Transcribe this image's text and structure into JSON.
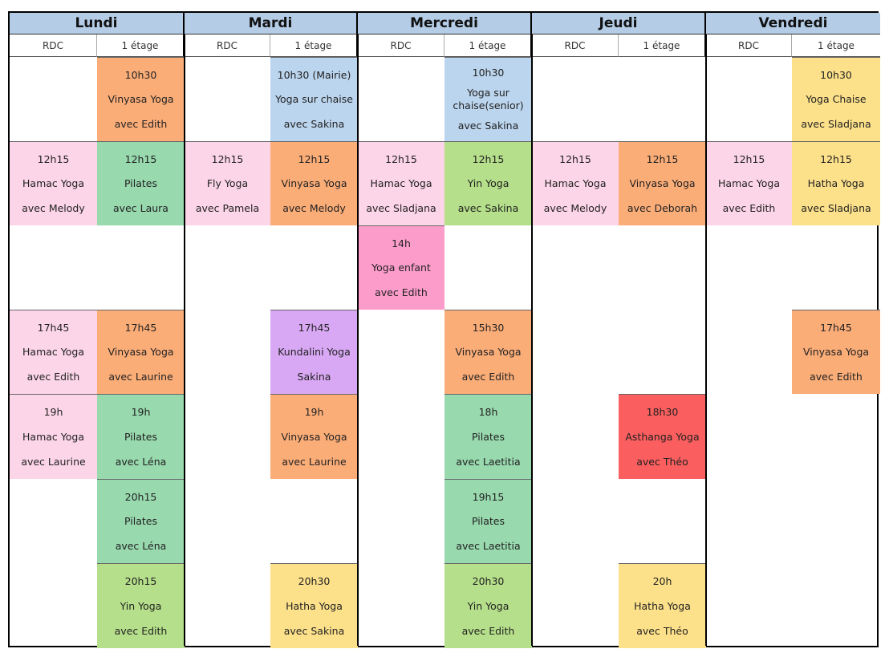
{
  "days": [
    "Lundi",
    "Mardi",
    "Mercredi",
    "Jeudi",
    "Vendredi"
  ],
  "floors": [
    "RDC",
    "1 étage",
    "RDC",
    "1 étage",
    "RDC",
    "1 étage",
    "RDC",
    "1 étage",
    "RDC",
    "1 étage"
  ],
  "colors": {
    "day_header": "#b4cce6",
    "pink": "#fcd5e8",
    "orange": "#fbad78",
    "green": "#98d9ae",
    "blue": "#bcd5ee",
    "yellow": "#fde18a",
    "lime": "#b5df8a",
    "hotpink": "#fc9ccb",
    "purple": "#d9a8f5",
    "red": "#fb5e5e"
  },
  "classes": [
    {
      "col": 2,
      "row": 3,
      "color": "orange",
      "time": "10h30",
      "name": "Vinyasa Yoga",
      "teacher": "avec Edith"
    },
    {
      "col": 4,
      "row": 3,
      "color": "blue",
      "time": "10h30 (Mairie)",
      "name": "Yoga sur chaise",
      "teacher": "avec Sakina"
    },
    {
      "col": 6,
      "row": 3,
      "color": "blue",
      "time": "10h30",
      "name": "Yoga sur chaise(senior)",
      "teacher": "avec Sakina"
    },
    {
      "col": 10,
      "row": 3,
      "color": "yellow",
      "time": "10h30",
      "name": "Yoga Chaise",
      "teacher": "avec Sladjana"
    },
    {
      "col": 1,
      "row": 4,
      "color": "pink",
      "time": "12h15",
      "name": "Hamac Yoga",
      "teacher": "avec Melody"
    },
    {
      "col": 2,
      "row": 4,
      "color": "green",
      "time": "12h15",
      "name": "Pilates",
      "teacher": "avec Laura"
    },
    {
      "col": 3,
      "row": 4,
      "color": "pink",
      "time": "12h15",
      "name": "Fly Yoga",
      "teacher": "avec Pamela"
    },
    {
      "col": 4,
      "row": 4,
      "color": "orange",
      "time": "12h15",
      "name": "Vinyasa Yoga",
      "teacher": "avec Melody"
    },
    {
      "col": 5,
      "row": 4,
      "color": "pink",
      "time": "12h15",
      "name": "Hamac Yoga",
      "teacher": "avec Sladjana"
    },
    {
      "col": 6,
      "row": 4,
      "color": "lime",
      "time": "12h15",
      "name": "Yin Yoga",
      "teacher": "avec Sakina"
    },
    {
      "col": 7,
      "row": 4,
      "color": "pink",
      "time": "12h15",
      "name": "Hamac Yoga",
      "teacher": "avec Melody"
    },
    {
      "col": 8,
      "row": 4,
      "color": "orange",
      "time": "12h15",
      "name": "Vinyasa Yoga",
      "teacher": "avec Deborah"
    },
    {
      "col": 9,
      "row": 4,
      "color": "pink",
      "time": "12h15",
      "name": "Hamac Yoga",
      "teacher": "avec Edith"
    },
    {
      "col": 10,
      "row": 4,
      "color": "yellow",
      "time": "12h15",
      "name": "Hatha Yoga",
      "teacher": "avec Sladjana"
    },
    {
      "col": 5,
      "row": 5,
      "color": "hotpink",
      "time": "14h",
      "name": "Yoga enfant",
      "teacher": "avec Edith"
    },
    {
      "col": 1,
      "row": 6,
      "color": "pink",
      "time": "17h45",
      "name": "Hamac Yoga",
      "teacher": "avec Edith"
    },
    {
      "col": 2,
      "row": 6,
      "color": "orange",
      "time": "17h45",
      "name": "Vinyasa Yoga",
      "teacher": "avec Laurine"
    },
    {
      "col": 4,
      "row": 6,
      "color": "purple",
      "time": "17h45",
      "name": "Kundalini Yoga",
      "teacher": "Sakina"
    },
    {
      "col": 6,
      "row": 6,
      "color": "orange",
      "time": "15h30",
      "name": "Vinyasa Yoga",
      "teacher": "avec Edith"
    },
    {
      "col": 10,
      "row": 6,
      "color": "orange",
      "time": "17h45",
      "name": "Vinyasa Yoga",
      "teacher": "avec Edith"
    },
    {
      "col": 1,
      "row": 7,
      "color": "pink",
      "time": "19h",
      "name": "Hamac Yoga",
      "teacher": "avec Laurine"
    },
    {
      "col": 2,
      "row": 7,
      "color": "green",
      "time": "19h",
      "name": "Pilates",
      "teacher": "avec Léna"
    },
    {
      "col": 4,
      "row": 7,
      "color": "orange",
      "time": "19h",
      "name": "Vinyasa Yoga",
      "teacher": "avec Laurine"
    },
    {
      "col": 6,
      "row": 7,
      "color": "green",
      "time": "18h",
      "name": "Pilates",
      "teacher": "avec Laetitia"
    },
    {
      "col": 8,
      "row": 7,
      "color": "red",
      "time": "18h30",
      "name": "Asthanga Yoga",
      "teacher": "avec Théo"
    },
    {
      "col": 2,
      "row": 8,
      "color": "green",
      "time": "20h15",
      "name": "Pilates",
      "teacher": "avec Léna"
    },
    {
      "col": 6,
      "row": 8,
      "color": "green",
      "time": "19h15",
      "name": "Pilates",
      "teacher": "avec Laetitia"
    },
    {
      "col": 2,
      "row": 9,
      "color": "lime",
      "time": "20h15",
      "name": "Yin Yoga",
      "teacher": "avec Edith"
    },
    {
      "col": 4,
      "row": 9,
      "color": "yellow",
      "time": "20h30",
      "name": "Hatha Yoga",
      "teacher": "avec Sakina"
    },
    {
      "col": 6,
      "row": 9,
      "color": "lime",
      "time": "20h30",
      "name": "Yin Yoga",
      "teacher": "avec Edith"
    },
    {
      "col": 8,
      "row": 9,
      "color": "yellow",
      "time": "20h",
      "name": "Hatha Yoga",
      "teacher": "avec Théo"
    }
  ]
}
